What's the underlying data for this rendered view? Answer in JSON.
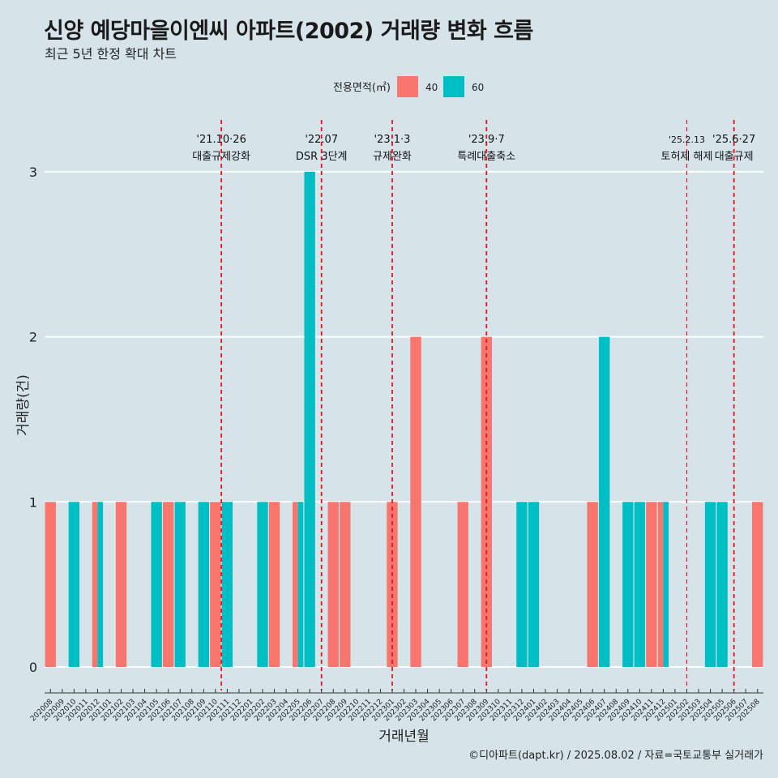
{
  "header": {
    "title": "신양 예당마을이엔씨 아파트(2002) 거래량 변화 흐름",
    "subtitle": "최근 5년 한정 확대 차트"
  },
  "footer": {
    "caption": "©디아파트(dapt.kr) / 2025.08.02 / 자료=국토교통부 실거래가"
  },
  "colors": {
    "background": "#d6e4ea",
    "series_40": "#f8766d",
    "series_60": "#00bfc4",
    "event_line": "#e8141b",
    "grid": "#ffffff"
  },
  "chart_data": {
    "type": "bar",
    "title": "신양 예당마을이엔씨 아파트(2002) 거래량 변화 흐름",
    "subtitle": "최근 5년 한정 확대 차트",
    "xlabel": "거래년월",
    "ylabel": "거래량(건)",
    "ylim": [
      0,
      3
    ],
    "yticks": [
      0,
      1,
      2,
      3
    ],
    "grid": true,
    "legend": {
      "title": "전용면적(㎡)",
      "position": "top",
      "labels": [
        "40",
        "60"
      ]
    },
    "categories": [
      "202008",
      "202009",
      "202010",
      "202011",
      "202012",
      "202101",
      "202102",
      "202103",
      "202104",
      "202105",
      "202106",
      "202107",
      "202108",
      "202109",
      "202110",
      "202111",
      "202112",
      "202201",
      "202202",
      "202203",
      "202204",
      "202205",
      "202206",
      "202207",
      "202208",
      "202209",
      "202210",
      "202211",
      "202212",
      "202301",
      "202302",
      "202303",
      "202304",
      "202305",
      "202306",
      "202307",
      "202308",
      "202309",
      "202310",
      "202311",
      "202312",
      "202401",
      "202402",
      "202403",
      "202404",
      "202405",
      "202406",
      "202407",
      "202408",
      "202409",
      "202410",
      "202411",
      "202412",
      "202501",
      "202502",
      "202503",
      "202504",
      "202505",
      "202506",
      "202507",
      "202508"
    ],
    "series": [
      {
        "name": "40",
        "color": "#f8766d",
        "values": [
          1,
          0,
          0,
          0,
          1,
          0,
          1,
          0,
          0,
          0,
          1,
          0,
          0,
          0,
          1,
          0,
          0,
          0,
          0,
          1,
          0,
          1,
          0,
          0,
          1,
          1,
          0,
          0,
          0,
          1,
          0,
          2,
          0,
          0,
          0,
          1,
          0,
          2,
          0,
          0,
          0,
          0,
          0,
          0,
          0,
          0,
          1,
          0,
          0,
          0,
          0,
          1,
          1,
          0,
          0,
          0,
          0,
          0,
          0,
          0,
          1
        ]
      },
      {
        "name": "60",
        "color": "#00bfc4",
        "values": [
          0,
          0,
          1,
          0,
          1,
          0,
          0,
          0,
          0,
          1,
          0,
          1,
          0,
          1,
          0,
          1,
          0,
          0,
          1,
          0,
          0,
          1,
          3,
          0,
          0,
          0,
          0,
          0,
          0,
          0,
          0,
          0,
          0,
          0,
          0,
          0,
          0,
          0,
          0,
          0,
          1,
          1,
          0,
          0,
          0,
          0,
          0,
          2,
          0,
          1,
          1,
          0,
          1,
          0,
          0,
          0,
          1,
          1,
          0,
          0,
          0
        ]
      }
    ],
    "annotations": [
      {
        "date_label": "'21.10·26",
        "text": "대출규제강화",
        "x": "202110",
        "offset": 0.5
      },
      {
        "date_label": "'22.07",
        "text": "DSR 3단계",
        "x": "202207",
        "offset": 0.0
      },
      {
        "date_label": "'23.1·3",
        "text": "규제완화",
        "x": "202301",
        "offset": 0.0
      },
      {
        "date_label": "'23.9·7",
        "text": "특례대출축소",
        "x": "202309",
        "offset": 0.0
      },
      {
        "date_label": "'25.2.13",
        "text": "토허제 해제",
        "x": "202502",
        "offset": 0.0,
        "thin": true
      },
      {
        "date_label": "'25.6·27",
        "text": "대출규제",
        "x": "202506",
        "offset": 0.0
      }
    ]
  }
}
